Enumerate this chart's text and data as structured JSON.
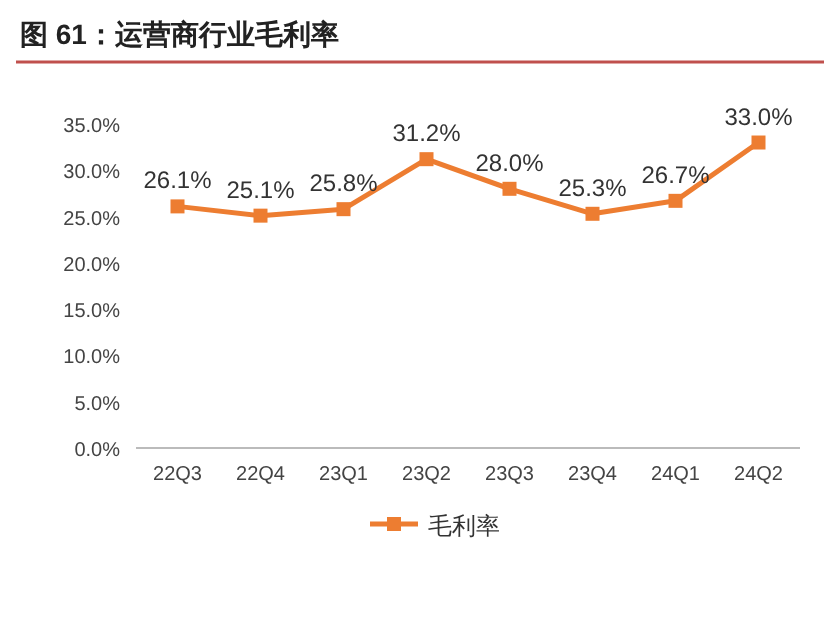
{
  "chart_data": {
    "type": "line",
    "title": "图 61：运营商行业毛利率",
    "categories": [
      "22Q3",
      "22Q4",
      "23Q1",
      "23Q2",
      "23Q3",
      "23Q4",
      "24Q1",
      "24Q2"
    ],
    "series": [
      {
        "name": "毛利率",
        "color": "#ed7d31",
        "values": [
          26.1,
          25.1,
          25.8,
          31.2,
          28.0,
          25.3,
          26.7,
          33.0
        ],
        "value_labels": [
          "26.1%",
          "25.1%",
          "25.8%",
          "31.2%",
          "28.0%",
          "25.3%",
          "26.7%",
          "33.0%"
        ]
      }
    ],
    "ylim": [
      0,
      35
    ],
    "yticks": [
      {
        "value": 0,
        "label": "0.0%"
      },
      {
        "value": 5,
        "label": "5.0%"
      },
      {
        "value": 10,
        "label": "10.0%"
      },
      {
        "value": 15,
        "label": "15.0%"
      },
      {
        "value": 20,
        "label": "20.0%"
      },
      {
        "value": 25,
        "label": "25.0%"
      },
      {
        "value": 30,
        "label": "30.0%"
      },
      {
        "value": 35,
        "label": "35.0%"
      }
    ],
    "legend": "bottom",
    "marker": "square",
    "line_style": "solid"
  }
}
